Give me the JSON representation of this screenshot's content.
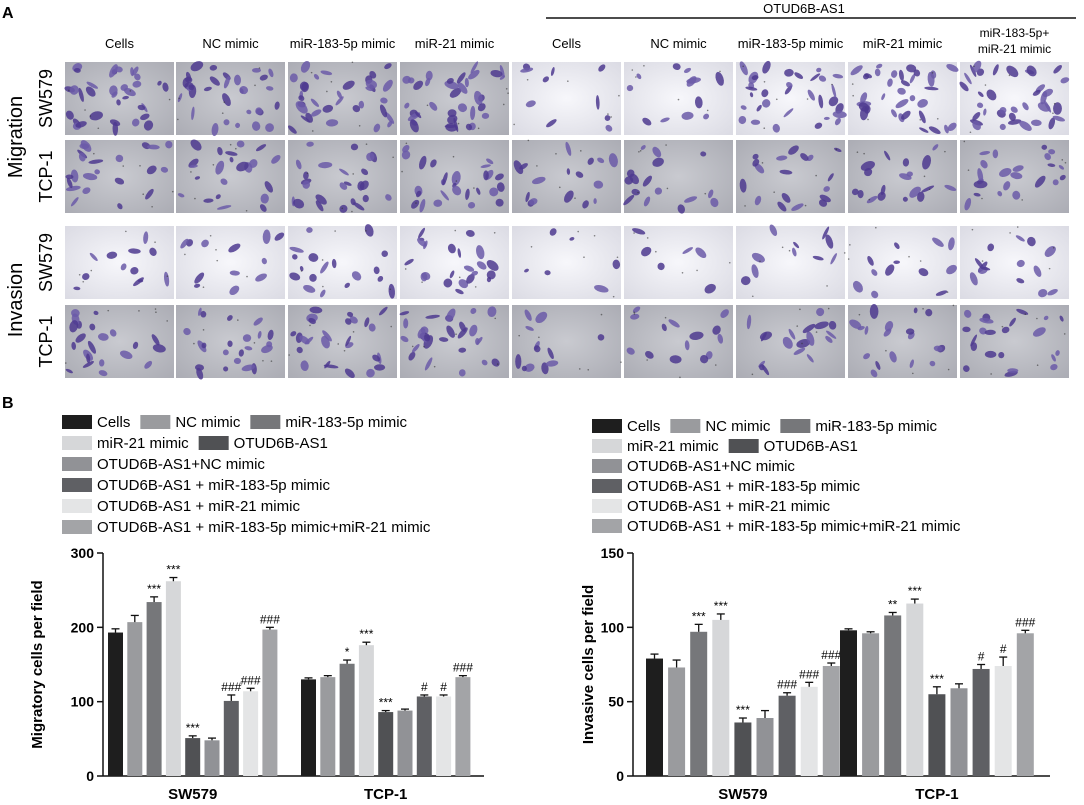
{
  "panel_a": {
    "label": "A",
    "group_header": "OTUD6B-AS1",
    "column_labels": [
      "Cells",
      "NC  mimic",
      "miR-183-5p mimic",
      "miR-21 mimic",
      "Cells",
      "NC  mimic",
      "miR-183-5p mimic",
      "miR-21 mimic",
      "miR-183-5p+\nmiR-21 mimic"
    ],
    "assay_labels": [
      "Migration",
      "Invasion"
    ],
    "cell_line_labels": [
      "SW579",
      "TCP-1"
    ],
    "image_note": "Transwell micrographs of crystal-violet–stained cells"
  },
  "panel_b": {
    "label": "B"
  },
  "colors": {
    "Cells": "#1e1e1e",
    "NC mimic": "#9a9b9e",
    "miR-183-5p mimic": "#76777a",
    "miR-21 mimic": "#d6d7d9",
    "OTUD6B-AS1": "#505154",
    "OTUD6B-AS1+NC mimic": "#919296",
    "OTUD6B-AS1 + miR-183-5p mimic": "#5f6064",
    "OTUD6B-AS1 + miR-21 mimic": "#e4e5e6",
    "OTUD6B-AS1 + miR-183-5p mimic+miR-21 mimic": "#a3a4a7"
  },
  "chart_data": [
    {
      "type": "bar",
      "title": "",
      "ylabel": "Migratory cells per field",
      "xlabel": "",
      "ylim": [
        0,
        300
      ],
      "yticks": [
        0,
        100,
        200,
        300
      ],
      "categories": [
        "SW579",
        "TCP-1"
      ],
      "legend": [
        [
          "Cells",
          "NC mimic",
          "miR-183-5p mimic"
        ],
        [
          "miR-21 mimic",
          "OTUD6B-AS1"
        ],
        [
          "OTUD6B-AS1+NC mimic"
        ],
        [
          "OTUD6B-AS1 + miR-183-5p mimic"
        ],
        [
          "OTUD6B-AS1 + miR-21 mimic"
        ],
        [
          "OTUD6B-AS1 + miR-183-5p mimic+miR-21 mimic"
        ]
      ],
      "series": [
        {
          "name": "Cells",
          "values": [
            193,
            130
          ],
          "errors": [
            5,
            2
          ],
          "annotations": [
            "",
            ""
          ]
        },
        {
          "name": "NC mimic",
          "values": [
            207,
            133
          ],
          "errors": [
            9,
            2
          ],
          "annotations": [
            "",
            ""
          ]
        },
        {
          "name": "miR-183-5p mimic",
          "values": [
            234,
            151
          ],
          "errors": [
            7,
            5
          ],
          "annotations": [
            "***",
            "*"
          ]
        },
        {
          "name": "miR-21 mimic",
          "values": [
            262,
            176
          ],
          "errors": [
            5,
            4
          ],
          "annotations": [
            "***",
            "***"
          ]
        },
        {
          "name": "OTUD6B-AS1",
          "values": [
            51,
            86
          ],
          "errors": [
            3,
            2
          ],
          "annotations": [
            "***",
            "***"
          ]
        },
        {
          "name": "OTUD6B-AS1+NC mimic",
          "values": [
            48,
            88
          ],
          "errors": [
            3,
            2
          ],
          "annotations": [
            "",
            ""
          ]
        },
        {
          "name": "OTUD6B-AS1 + miR-183-5p mimic",
          "values": [
            101,
            107
          ],
          "errors": [
            8,
            2
          ],
          "annotations": [
            "###",
            "#"
          ]
        },
        {
          "name": "OTUD6B-AS1 + miR-21 mimic",
          "values": [
            114,
            107
          ],
          "errors": [
            4,
            2
          ],
          "annotations": [
            "###",
            "#"
          ]
        },
        {
          "name": "OTUD6B-AS1 + miR-183-5p mimic+miR-21 mimic",
          "values": [
            197,
            133
          ],
          "errors": [
            3,
            2
          ],
          "annotations": [
            "###",
            "###"
          ]
        }
      ]
    },
    {
      "type": "bar",
      "title": "",
      "ylabel": "Invasive cells per field",
      "xlabel": "",
      "ylim": [
        0,
        150
      ],
      "yticks": [
        0,
        50,
        100,
        150
      ],
      "categories": [
        "SW579",
        "TCP-1"
      ],
      "legend": [
        [
          "Cells",
          "NC mimic",
          "miR-183-5p mimic"
        ],
        [
          "miR-21 mimic",
          "OTUD6B-AS1"
        ],
        [
          "OTUD6B-AS1+NC mimic"
        ],
        [
          "OTUD6B-AS1 + miR-183-5p mimic"
        ],
        [
          "OTUD6B-AS1 + miR-21 mimic"
        ],
        [
          "OTUD6B-AS1 + miR-183-5p mimic+miR-21 mimic"
        ]
      ],
      "series": [
        {
          "name": "Cells",
          "values": [
            79,
            98
          ],
          "errors": [
            3,
            1
          ],
          "annotations": [
            "",
            ""
          ]
        },
        {
          "name": "NC mimic",
          "values": [
            73,
            96
          ],
          "errors": [
            5,
            1
          ],
          "annotations": [
            "",
            ""
          ]
        },
        {
          "name": "miR-183-5p mimic",
          "values": [
            97,
            108
          ],
          "errors": [
            5,
            2
          ],
          "annotations": [
            "***",
            "**"
          ]
        },
        {
          "name": "miR-21 mimic",
          "values": [
            105,
            116
          ],
          "errors": [
            4,
            3
          ],
          "annotations": [
            "***",
            "***"
          ]
        },
        {
          "name": "OTUD6B-AS1",
          "values": [
            36,
            55
          ],
          "errors": [
            3,
            5
          ],
          "annotations": [
            "***",
            "***"
          ]
        },
        {
          "name": "OTUD6B-AS1+NC mimic",
          "values": [
            39,
            59
          ],
          "errors": [
            5,
            3
          ],
          "annotations": [
            "",
            ""
          ]
        },
        {
          "name": "OTUD6B-AS1 + miR-183-5p mimic",
          "values": [
            54,
            72
          ],
          "errors": [
            2,
            3
          ],
          "annotations": [
            "###",
            "#"
          ]
        },
        {
          "name": "OTUD6B-AS1 + miR-21 mimic",
          "values": [
            60,
            74
          ],
          "errors": [
            3,
            6
          ],
          "annotations": [
            "###",
            "#"
          ]
        },
        {
          "name": "OTUD6B-AS1 + miR-183-5p mimic+miR-21 mimic",
          "values": [
            74,
            96
          ],
          "errors": [
            2,
            2
          ],
          "annotations": [
            "###",
            "###"
          ]
        }
      ]
    }
  ]
}
